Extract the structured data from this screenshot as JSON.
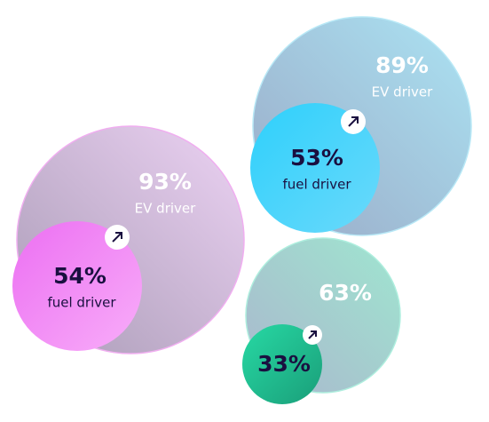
{
  "groups": [
    {
      "big": "93%",
      "big_label": "EV driver",
      "small": "54%",
      "small_label": "fuel driver"
    },
    {
      "big": "89%",
      "big_label": "EV driver",
      "small": "53%",
      "small_label": "fuel driver"
    },
    {
      "big": "63%",
      "small": "33%"
    }
  ]
}
